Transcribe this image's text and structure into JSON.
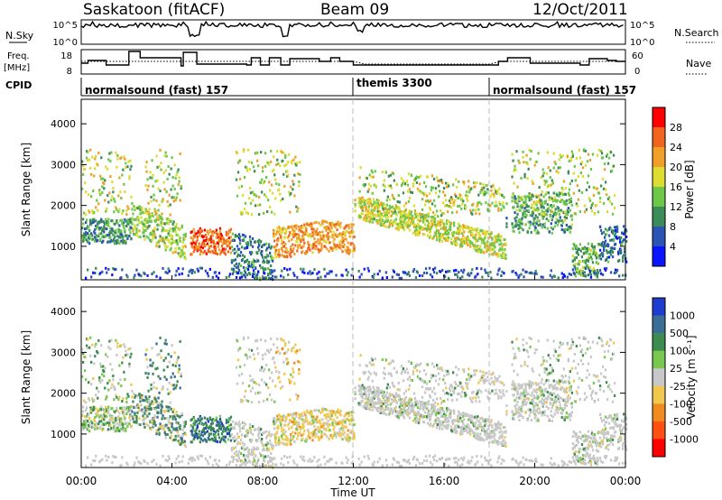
{
  "header": {
    "title": "Saskatoon (fitACF)",
    "beam": "Beam 09",
    "date": "12/Oct/2011"
  },
  "nsky_panel": {
    "left_label": "N.Sky",
    "right_label": "N.Search",
    "left_ticks": [
      "10^5",
      "10^0"
    ],
    "right_ticks": [
      "10^5",
      "10^0"
    ]
  },
  "freq_panel": {
    "left_label_line1": "Freq.",
    "left_label_line2": "[MHz]",
    "right_label": "Nave",
    "left_ticks": [
      "18",
      "8"
    ],
    "right_ticks": [
      "60",
      "0"
    ]
  },
  "cpid": {
    "label": "CPID",
    "segments": [
      {
        "name": "normalsound (fast) 157",
        "start_hour": 0
      },
      {
        "name": "themis 3300",
        "start_hour": 12
      },
      {
        "name": "normalsound (fast) 157",
        "start_hour": 18
      }
    ]
  },
  "time_axis": {
    "label": "Time UT",
    "ticks": [
      "00:00",
      "04:00",
      "08:00",
      "12:00",
      "16:00",
      "20:00",
      "00:00"
    ]
  },
  "chart_data": [
    {
      "type": "heatmap",
      "name": "power",
      "ylabel": "Slant Range [km]",
      "xlim": [
        0,
        24
      ],
      "ylim": [
        180,
        4600
      ],
      "yticks": [
        1000,
        2000,
        3000,
        4000
      ],
      "colorbar_label": "Power [dB]",
      "colorbar_ticks": [
        "4",
        "8",
        "12",
        "16",
        "20",
        "24",
        "28"
      ],
      "colors": [
        "#0a14ff",
        "#2b54b4",
        "#3c8c5a",
        "#6dc84a",
        "#dcdc32",
        "#f0a028",
        "#f0641e",
        "#ff0000"
      ]
    },
    {
      "type": "heatmap",
      "name": "velocity",
      "ylabel": "Slant Range [km]",
      "xlim": [
        0,
        24
      ],
      "ylim": [
        180,
        4600
      ],
      "yticks": [
        1000,
        2000,
        3000,
        4000
      ],
      "colorbar_label": "Velocity [m s⁻¹]",
      "colorbar_ticks": [
        "1000",
        "500",
        "100",
        "25",
        "-25",
        "-100",
        "-500",
        "-1000"
      ],
      "colors": [
        "#1e3ccd",
        "#3a6e96",
        "#3c8c50",
        "#78c850",
        "#c8c8c8",
        "#f0c850",
        "#f08c1e",
        "#ff5014",
        "#ff0000"
      ]
    }
  ]
}
